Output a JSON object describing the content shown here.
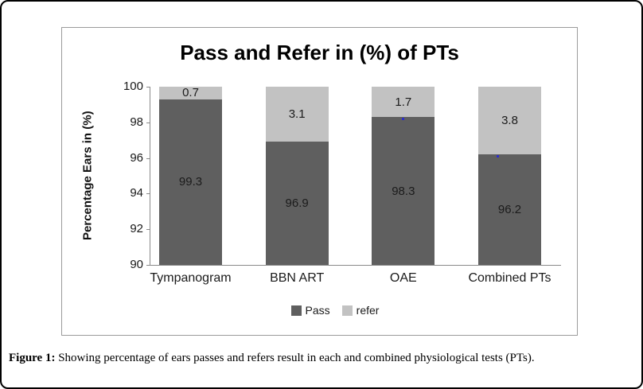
{
  "figure": {
    "title": "Pass and Refer in (%) of PTs",
    "y_axis": {
      "label": "Percentage Ears in (%)",
      "min": 90,
      "max": 100,
      "ticks": [
        100,
        98,
        96,
        94,
        92,
        90
      ]
    },
    "legend": [
      {
        "label": "Pass",
        "color": "#5f5f5f"
      },
      {
        "label": "refer",
        "color": "#c2c2c2"
      }
    ],
    "caption_label": "Figure 1:",
    "caption_text": " Showing percentage of ears passes and refers result in each and combined physiological tests (PTs)."
  },
  "chart_data": {
    "type": "bar",
    "stacked": true,
    "title": "Pass and Refer in (%) of PTs",
    "xlabel": "",
    "ylabel": "Percentage Ears in (%)",
    "ylim": [
      90,
      100
    ],
    "yticks": [
      100,
      98,
      96,
      94,
      92,
      90
    ],
    "grid": false,
    "legend_position": "bottom",
    "categories": [
      "Tympanogram",
      "BBN ART",
      "OAE",
      "Combined PTs"
    ],
    "series": [
      {
        "name": "Pass",
        "color": "#5f5f5f",
        "values": [
          99.3,
          96.9,
          98.3,
          96.2
        ]
      },
      {
        "name": "refer",
        "color": "#c2c2c2",
        "values": [
          0.7,
          3.1,
          1.7,
          3.8
        ]
      }
    ],
    "marker_dots": [
      {
        "category_index": 2,
        "x_fraction": 0.5,
        "color": "#2a2ad4"
      },
      {
        "category_index": 3,
        "x_fraction": 0.31,
        "color": "#2a2ad4"
      }
    ],
    "axis_color": "#8a8a8a"
  }
}
